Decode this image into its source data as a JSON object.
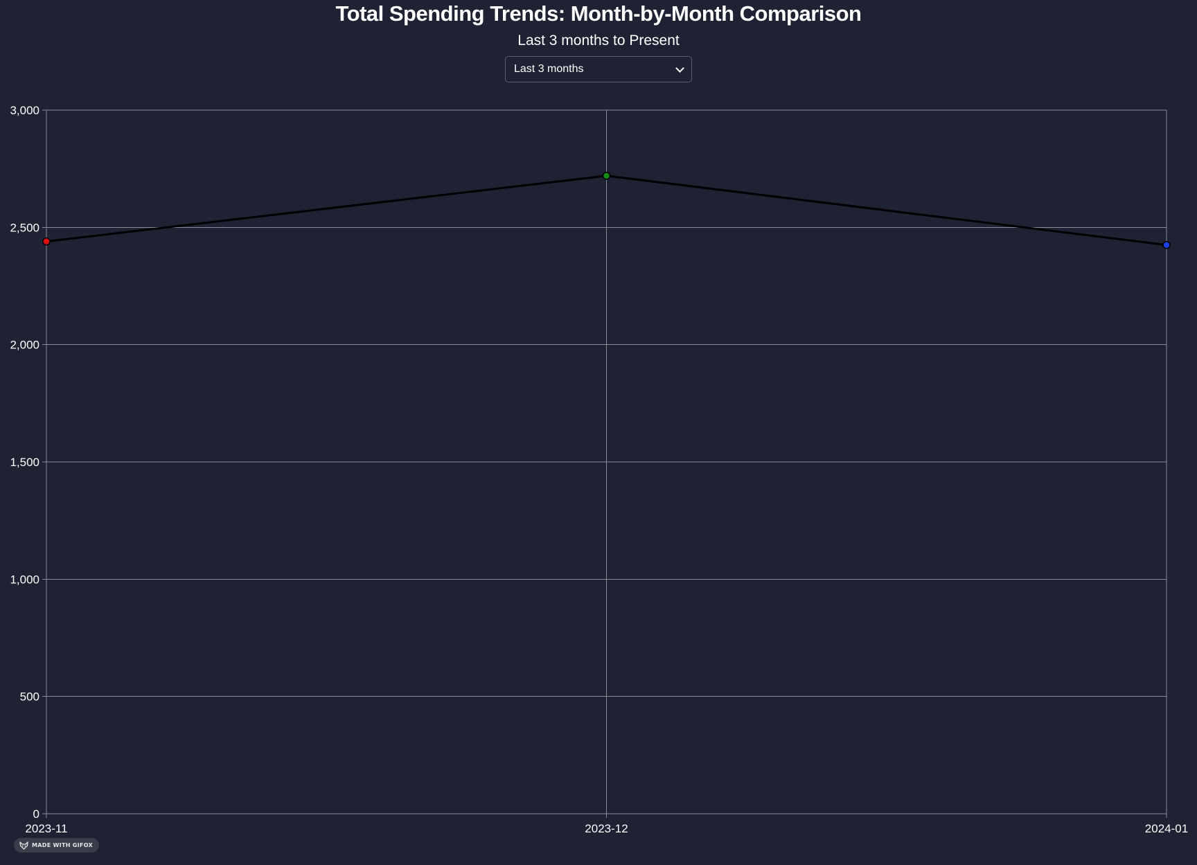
{
  "header": {
    "title": "Total Spending Trends: Month-by-Month Comparison",
    "subtitle": "Last 3 months to Present"
  },
  "range_select": {
    "selected": "Last 3 months"
  },
  "badge": {
    "label": "MADE WITH GIFOX",
    "icon": "fox-icon"
  },
  "colors": {
    "background": "#1e2232",
    "grid": "#8a8e99",
    "line": "#000000",
    "point_1": "#e01010",
    "point_2": "#138a13",
    "point_3": "#1f3fe0"
  },
  "chart_data": {
    "type": "line",
    "title": "Total Spending Trends: Month-by-Month Comparison",
    "subtitle": "Last 3 months to Present",
    "categories": [
      "2023-11",
      "2023-12",
      "2024-01"
    ],
    "series": [
      {
        "values": [
          2440,
          2720,
          2425
        ],
        "point_colors": [
          "#e01010",
          "#138a13",
          "#1f3fe0"
        ]
      }
    ],
    "ylim": [
      0,
      3000
    ],
    "yticks": [
      0,
      500,
      1000,
      1500,
      2000,
      2500,
      3000
    ],
    "ytick_labels": [
      "0",
      "500",
      "1,000",
      "1,500",
      "2,000",
      "2,500",
      "3,000"
    ],
    "grid": true,
    "xlabel": "",
    "ylabel": ""
  }
}
